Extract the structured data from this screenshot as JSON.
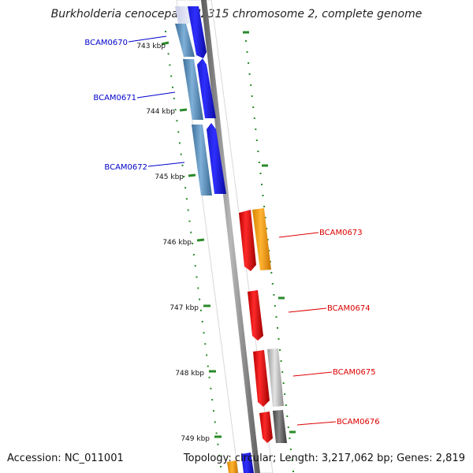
{
  "title": "Burkholderia cenocepacia J2315 chromosome 2, complete genome",
  "footer": {
    "accession": "Accession: NC_011001",
    "summary": "Topology: circular; Length: 3,217,062 bp; Genes: 2,819"
  },
  "ticks": [
    "743 kbp",
    "744 kbp",
    "745 kbp",
    "746 kbp",
    "747 kbp",
    "748 kbp",
    "749 kbp"
  ],
  "genes": {
    "left": [
      "BCAM0670",
      "BCAM0671",
      "BCAM0672"
    ],
    "right": [
      "BCAM0673",
      "BCAM0674",
      "BCAM0675",
      "BCAM0676"
    ]
  },
  "colors": {
    "left_label": "#0000cc",
    "right_label": "#dd0000",
    "backbone": "#808080",
    "tick": "#2a8a2a"
  }
}
